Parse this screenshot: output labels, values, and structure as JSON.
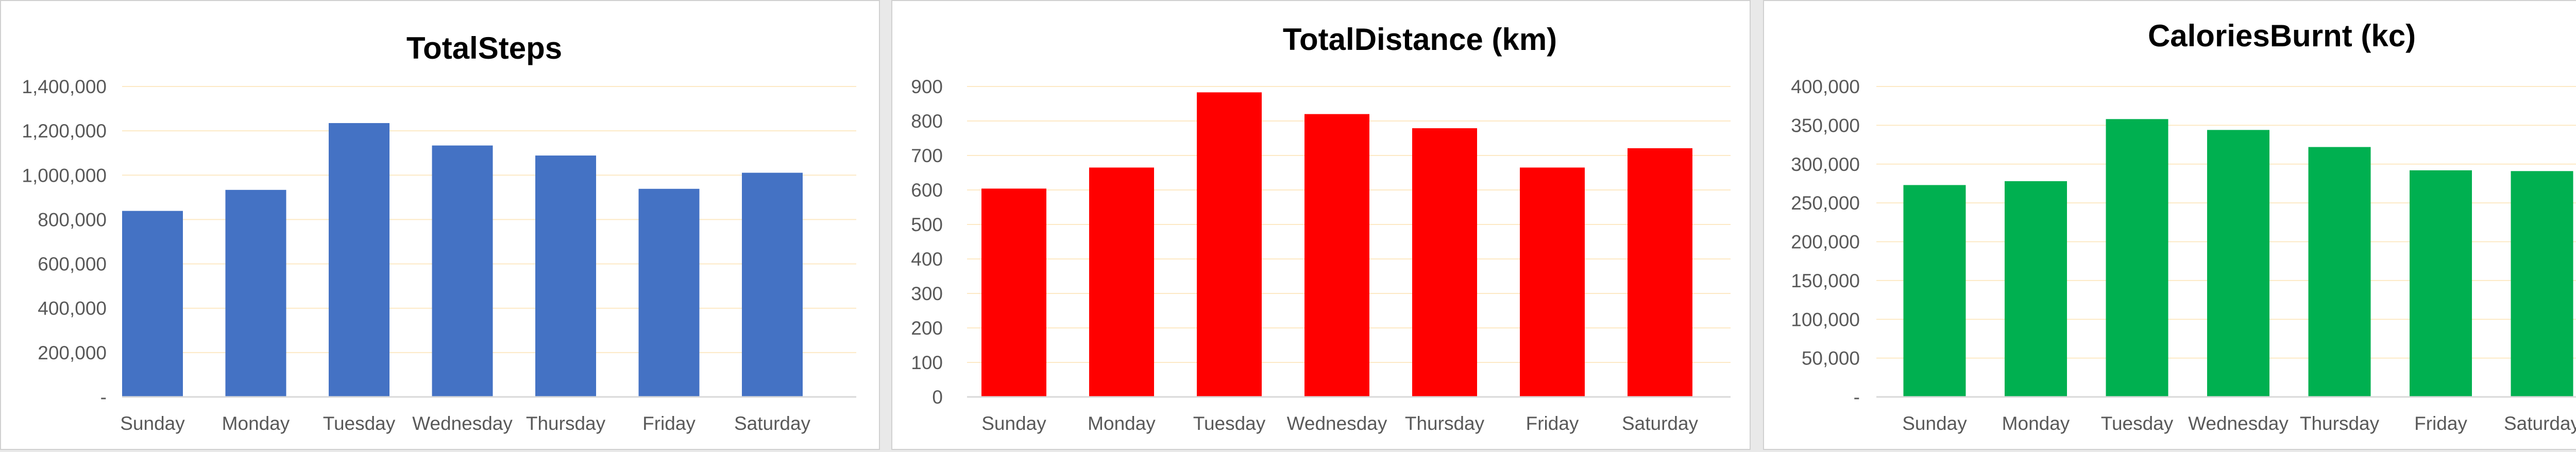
{
  "chart_data": [
    {
      "type": "bar",
      "title": "TotalSteps",
      "categories": [
        "Sunday",
        "Monday",
        "Tuesday",
        "Wednesday",
        "Thursday",
        "Friday",
        "Saturday"
      ],
      "values": [
        838921,
        933704,
        1235001,
        1133906,
        1088658,
        938477,
        1010969
      ],
      "ylim": [
        0,
        1400000
      ],
      "yticks": [
        0,
        200000,
        400000,
        600000,
        800000,
        1000000,
        1200000,
        1400000
      ],
      "ytick_labels": [
        "-",
        "200,000",
        "400,000",
        "600,000",
        "800,000",
        "1,000,000",
        "1,200,000",
        "1,400,000"
      ],
      "color": "#4472c4",
      "grid": true,
      "legend": false
    },
    {
      "type": "bar",
      "title": "TotalDistance (km)",
      "categories": [
        "Sunday",
        "Monday",
        "Tuesday",
        "Wednesday",
        "Thursday",
        "Friday",
        "Saturday"
      ],
      "values": [
        604,
        665,
        883,
        820,
        779,
        665,
        721
      ],
      "ylim": [
        0,
        900
      ],
      "yticks": [
        0,
        100,
        200,
        300,
        400,
        500,
        600,
        700,
        800,
        900
      ],
      "ytick_labels": [
        "0",
        "100",
        "200",
        "300",
        "400",
        "500",
        "600",
        "700",
        "800",
        "900"
      ],
      "color": "#ff0000",
      "grid": true,
      "legend": false
    },
    {
      "type": "bar",
      "title": "CaloriesBurnt (kc)",
      "categories": [
        "Sunday",
        "Monday",
        "Tuesday",
        "Wednesday",
        "Thursday",
        "Friday",
        "Saturday"
      ],
      "values": [
        273000,
        278000,
        358000,
        344000,
        322000,
        292000,
        291000
      ],
      "ylim": [
        0,
        400000
      ],
      "yticks": [
        0,
        50000,
        100000,
        150000,
        200000,
        250000,
        300000,
        350000,
        400000
      ],
      "ytick_labels": [
        "-",
        "50,000",
        "100,000",
        "150,000",
        "200,000",
        "250,000",
        "300,000",
        "350,000",
        "400,000"
      ],
      "color": "#00b050",
      "grid": true,
      "legend": false
    }
  ]
}
